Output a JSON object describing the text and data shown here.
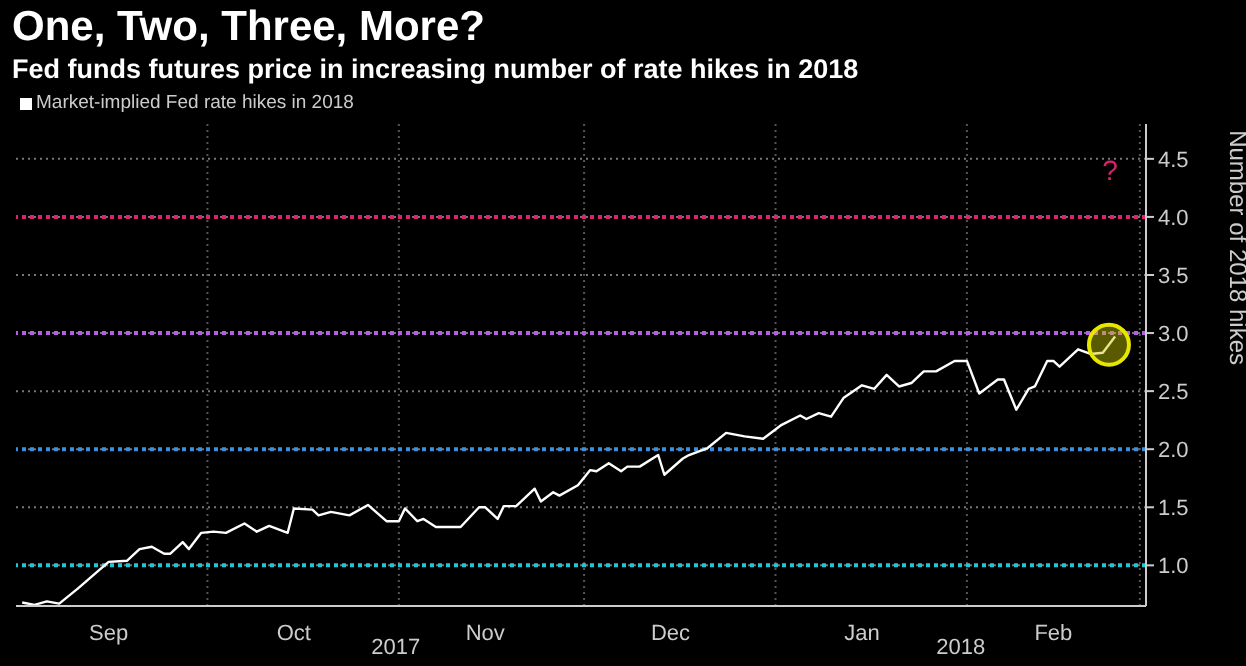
{
  "chart_data": {
    "type": "line",
    "title": "One, Two, Three, More?",
    "subtitle": "Fed funds futures price in increasing number of rate hikes in 2018",
    "ylabel": "Number of 2018 hikes",
    "legend": "top left",
    "grid": true,
    "line_style": "solid",
    "marker": "none",
    "x": [
      "2017-09-01",
      "2017-09-03",
      "2017-09-05",
      "2017-09-07",
      "2017-09-10",
      "2017-09-15",
      "2017-09-18",
      "2017-09-20",
      "2017-09-22",
      "2017-09-24",
      "2017-09-25",
      "2017-09-27",
      "2017-09-28",
      "2017-09-30",
      "2017-10-02",
      "2017-10-04",
      "2017-10-07",
      "2017-10-09",
      "2017-10-11",
      "2017-10-14",
      "2017-10-15",
      "2017-10-18",
      "2017-10-19",
      "2017-10-21",
      "2017-10-24",
      "2017-10-27",
      "2017-10-30",
      "2017-11-01",
      "2017-11-02",
      "2017-11-04",
      "2017-11-05",
      "2017-11-07",
      "2017-11-11",
      "2017-11-14",
      "2017-11-15",
      "2017-11-17",
      "2017-11-18",
      "2017-11-20",
      "2017-11-23",
      "2017-11-24",
      "2017-11-26",
      "2017-11-27",
      "2017-11-30",
      "2017-12-02",
      "2017-12-03",
      "2017-12-05",
      "2017-12-07",
      "2017-12-08",
      "2017-12-10",
      "2017-12-13",
      "2017-12-14",
      "2017-12-17",
      "2017-12-18",
      "2017-12-21",
      "2017-12-24",
      "2017-12-27",
      "2017-12-30",
      "2018-01-02",
      "2018-01-05",
      "2018-01-06",
      "2018-01-08",
      "2018-01-10",
      "2018-01-12",
      "2018-01-15",
      "2018-01-17",
      "2018-01-19",
      "2018-01-21",
      "2018-01-23",
      "2018-01-25",
      "2018-01-27",
      "2018-01-30",
      "2018-02-01",
      "2018-02-03",
      "2018-02-06",
      "2018-02-07",
      "2018-02-09",
      "2018-02-11",
      "2018-02-12",
      "2018-02-14",
      "2018-02-15",
      "2018-02-16",
      "2018-02-19",
      "2018-02-21",
      "2018-02-23",
      "2018-02-25"
    ],
    "series": [
      {
        "name": "Market-implied Fed rate hikes in 2018",
        "color": "#ffffff",
        "values": [
          0.68,
          0.66,
          0.69,
          0.67,
          0.8,
          1.03,
          1.04,
          1.14,
          1.16,
          1.1,
          1.1,
          1.2,
          1.14,
          1.28,
          1.29,
          1.28,
          1.36,
          1.29,
          1.34,
          1.28,
          1.49,
          1.48,
          1.43,
          1.46,
          1.43,
          1.52,
          1.38,
          1.38,
          1.49,
          1.38,
          1.4,
          1.33,
          1.33,
          1.5,
          1.5,
          1.4,
          1.51,
          1.51,
          1.66,
          1.55,
          1.63,
          1.6,
          1.69,
          1.82,
          1.81,
          1.88,
          1.81,
          1.85,
          1.85,
          1.95,
          1.78,
          1.92,
          1.95,
          2.01,
          2.14,
          2.11,
          2.09,
          2.21,
          2.29,
          2.26,
          2.31,
          2.28,
          2.44,
          2.55,
          2.52,
          2.64,
          2.54,
          2.57,
          2.67,
          2.67,
          2.76,
          2.76,
          2.48,
          2.6,
          2.6,
          2.34,
          2.52,
          2.54,
          2.76,
          2.76,
          2.71,
          2.86,
          2.82,
          2.83,
          2.97
        ]
      }
    ],
    "xlim": [
      "2017-08-31",
      "2018-03-02"
    ],
    "xticks": [
      {
        "value": "2017-09-15",
        "label": "Sep"
      },
      {
        "value": "2017-10-01",
        "label": null
      },
      {
        "value": "2017-10-15",
        "label": "Oct"
      },
      {
        "value": "2017-11-01",
        "label": null
      },
      {
        "value": "2017-11-15",
        "label": "Nov"
      },
      {
        "value": "2017-12-01",
        "label": null
      },
      {
        "value": "2017-12-15",
        "label": "Dec"
      },
      {
        "value": "2018-01-01",
        "label": null
      },
      {
        "value": "2018-01-15",
        "label": "Jan"
      },
      {
        "value": "2018-02-01",
        "label": null
      },
      {
        "value": "2018-02-15",
        "label": "Feb"
      },
      {
        "value": "2018-03-01",
        "label": null
      }
    ],
    "ylim": [
      0.65,
      4.8
    ],
    "yticks": [
      {
        "value": 1,
        "label": "1.0"
      },
      {
        "value": 1.5,
        "label": "1.5"
      },
      {
        "value": 2,
        "label": "2.0"
      },
      {
        "value": 2.5,
        "label": "2.5"
      },
      {
        "value": 3,
        "label": "3.0"
      },
      {
        "value": 3.5,
        "label": "3.5"
      },
      {
        "value": 4,
        "label": "4.0"
      },
      {
        "value": 4.5,
        "label": "4.5"
      }
    ],
    "ref_lines": [
      {
        "axis": "y",
        "value": 1,
        "color": "#1fc8d0",
        "line_style": "dotted"
      },
      {
        "axis": "y",
        "value": 2,
        "color": "#3a8ee8",
        "line_style": "dotted"
      },
      {
        "axis": "y",
        "value": 3,
        "color": "#b45ee8",
        "line_style": "dotted"
      },
      {
        "axis": "y",
        "value": 4,
        "color": "#e0206e",
        "line_style": "dotted"
      }
    ],
    "annotations": [
      "?",
      "2017",
      "2018"
    ]
  }
}
